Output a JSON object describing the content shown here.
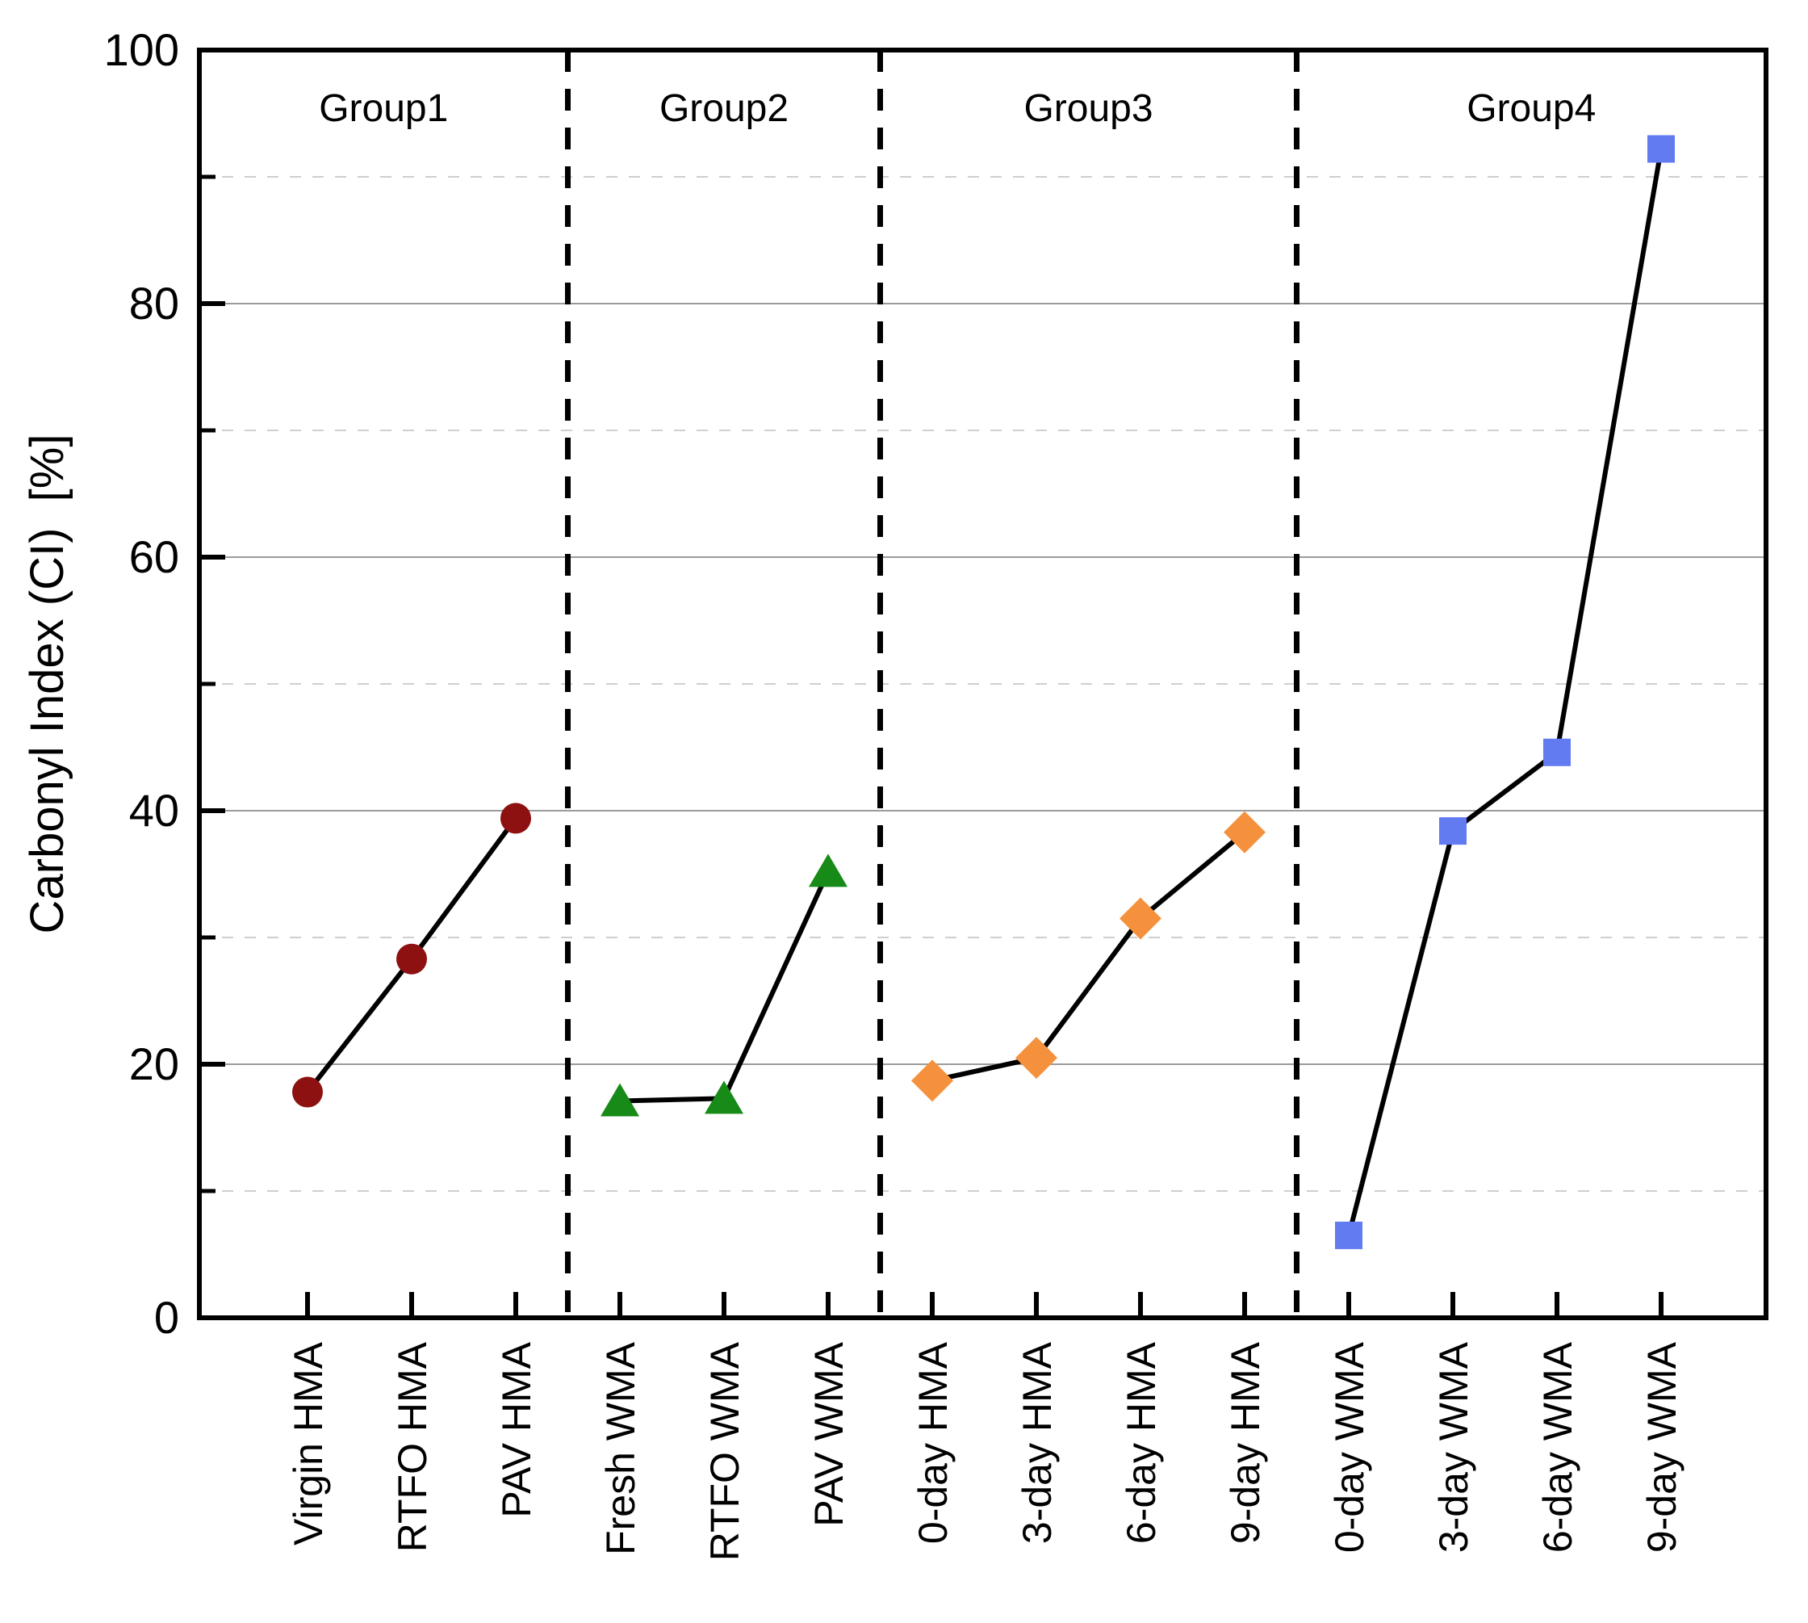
{
  "chart_data": {
    "type": "scatter",
    "title": "",
    "xlabel": "",
    "ylabel": "Carbonyl Index (CI)  [%]",
    "ylim": [
      0,
      100
    ],
    "yticks_major": [
      0,
      20,
      40,
      60,
      80,
      100
    ],
    "yticks_minor": [
      10,
      30,
      50,
      70,
      90
    ],
    "grid": {
      "major": "solid",
      "minor": "dashed"
    },
    "legend_position": "none",
    "line_color": "#000000",
    "separator_color": "#000000",
    "major_grid_color": "#9B9B9B",
    "minor_grid_color": "#CFCFCF",
    "groups": [
      {
        "label": "Group1",
        "marker": "circle",
        "color": "#8E1111",
        "categories": [
          "Virgin HMA",
          "RTFO HMA",
          "PAV HMA"
        ],
        "values": [
          17.8,
          28.3,
          39.4
        ]
      },
      {
        "label": "Group2",
        "marker": "triangle",
        "color": "#178A17",
        "categories": [
          "Fresh WMA",
          "RTFO WMA",
          "PAV WMA"
        ],
        "values": [
          17.1,
          17.3,
          35.2
        ]
      },
      {
        "label": "Group3",
        "marker": "diamond",
        "color": "#F5913D",
        "categories": [
          "0-day HMA",
          "3-day HMA",
          "6-day HMA",
          "9-day HMA"
        ],
        "values": [
          18.7,
          20.5,
          31.5,
          38.3
        ]
      },
      {
        "label": "Group4",
        "marker": "square",
        "color": "#637BF0",
        "categories": [
          "0-day WMA",
          "3-day WMA",
          "6-day WMA",
          "9-day WMA"
        ],
        "values": [
          6.5,
          38.4,
          44.6,
          92.2
        ]
      }
    ]
  }
}
